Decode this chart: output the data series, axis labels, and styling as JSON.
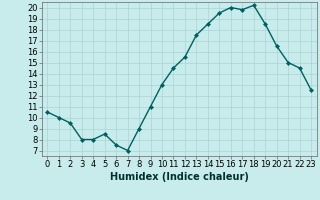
{
  "x": [
    0,
    1,
    2,
    3,
    4,
    5,
    6,
    7,
    8,
    9,
    10,
    11,
    12,
    13,
    14,
    15,
    16,
    17,
    18,
    19,
    20,
    21,
    22,
    23
  ],
  "y": [
    10.5,
    10.0,
    9.5,
    8.0,
    8.0,
    8.5,
    7.5,
    7.0,
    9.0,
    11.0,
    13.0,
    14.5,
    15.5,
    17.5,
    18.5,
    19.5,
    20.0,
    19.8,
    20.2,
    18.5,
    16.5,
    15.0,
    14.5,
    12.5
  ],
  "xlabel": "Humidex (Indice chaleur)",
  "line_color": "#006060",
  "marker": "D",
  "marker_size": 2,
  "bg_color": "#c8ecec",
  "grid_color": "#aad4d4",
  "xlim": [
    -0.5,
    23.5
  ],
  "ylim": [
    6.5,
    20.5
  ],
  "yticks": [
    7,
    8,
    9,
    10,
    11,
    12,
    13,
    14,
    15,
    16,
    17,
    18,
    19,
    20
  ],
  "xticks": [
    0,
    1,
    2,
    3,
    4,
    5,
    6,
    7,
    8,
    9,
    10,
    11,
    12,
    13,
    14,
    15,
    16,
    17,
    18,
    19,
    20,
    21,
    22,
    23
  ],
  "xtick_labels": [
    "0",
    "1",
    "2",
    "3",
    "4",
    "5",
    "6",
    "7",
    "8",
    "9",
    "10",
    "11",
    "12",
    "13",
    "14",
    "15",
    "16",
    "17",
    "18",
    "19",
    "20",
    "21",
    "22",
    "23"
  ],
  "line_width": 1.0,
  "tick_fontsize": 6.0,
  "xlabel_fontsize": 7.0
}
